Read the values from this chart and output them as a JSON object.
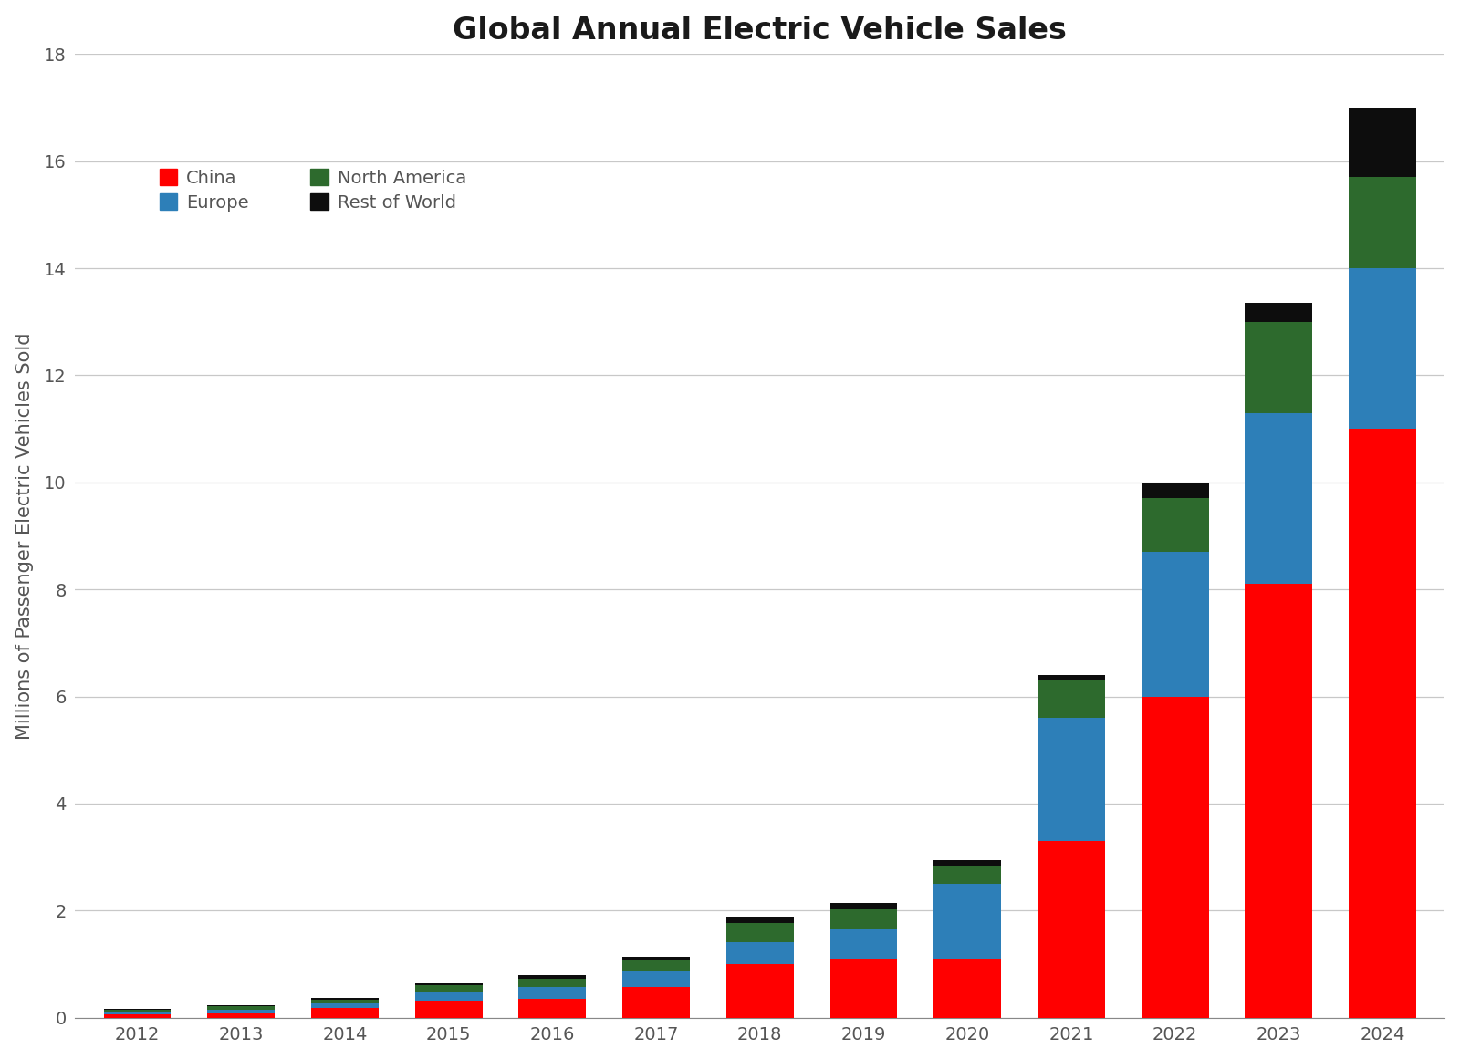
{
  "title": "Global Annual Electric Vehicle Sales",
  "ylabel": "Millions of Passenger Electric Vehicles Sold",
  "years": [
    2012,
    2013,
    2014,
    2015,
    2016,
    2017,
    2018,
    2019,
    2020,
    2021,
    2022,
    2023,
    2024
  ],
  "china": [
    0.06,
    0.08,
    0.18,
    0.31,
    0.35,
    0.58,
    1.0,
    1.1,
    1.1,
    3.3,
    6.0,
    8.1,
    11.0
  ],
  "europe": [
    0.04,
    0.07,
    0.08,
    0.17,
    0.22,
    0.3,
    0.4,
    0.56,
    1.4,
    2.3,
    2.7,
    3.2,
    3.0
  ],
  "north_america": [
    0.05,
    0.07,
    0.08,
    0.12,
    0.16,
    0.2,
    0.36,
    0.36,
    0.34,
    0.7,
    1.0,
    1.7,
    1.7
  ],
  "rest_of_world": [
    0.01,
    0.02,
    0.03,
    0.04,
    0.06,
    0.06,
    0.12,
    0.12,
    0.1,
    0.1,
    0.3,
    0.35,
    1.3
  ],
  "colors": {
    "china": "#ff0000",
    "europe": "#2d7fb8",
    "north_america": "#2d6a2d",
    "rest_of_world": "#0d0d0d"
  },
  "legend_labels_row1": [
    "China",
    "Europe"
  ],
  "legend_labels_row2": [
    "North America",
    "Rest of World"
  ],
  "ylim": [
    0,
    18
  ],
  "yticks": [
    0,
    2,
    4,
    6,
    8,
    10,
    12,
    14,
    16,
    18
  ],
  "background_color": "#ffffff",
  "grid_color": "#c8c8c8",
  "title_fontsize": 24,
  "axis_label_fontsize": 15,
  "tick_fontsize": 14,
  "legend_fontsize": 14
}
